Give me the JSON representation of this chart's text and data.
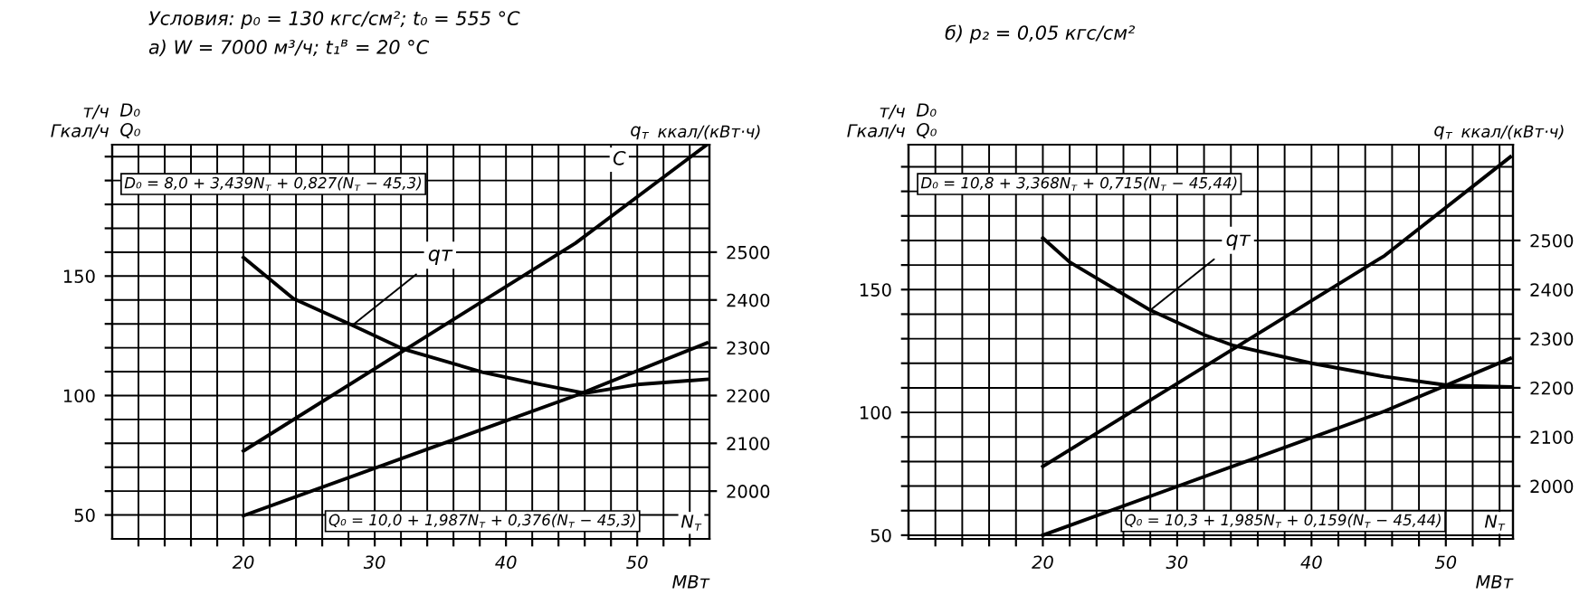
{
  "chart_data": [
    {
      "type": "line",
      "title": "Условия: p₀ = 130 кгс/см²; t₀ = 555 °C",
      "subtitle": "а) W = 7000 м³/ч; t₁$^{в}$ = 20 °C",
      "xlabel": "МВт",
      "ylabel": "т/ч\nГкал/ч",
      "y2label": "ккал/(кВт·ч)",
      "xlim": [
        10,
        55.5
      ],
      "xticks": [
        {
          "value": 12,
          "label": null
        },
        {
          "value": 14,
          "label": null
        },
        {
          "value": 16,
          "label": null
        },
        {
          "value": 18,
          "label": null
        },
        20,
        {
          "value": 22,
          "label": null
        },
        {
          "value": 24,
          "label": null
        },
        {
          "value": 26,
          "label": null
        },
        {
          "value": 28,
          "label": null
        },
        30,
        {
          "value": 32,
          "label": null
        },
        {
          "value": 34,
          "label": null
        },
        {
          "value": 36,
          "label": null
        },
        {
          "value": 38,
          "label": null
        },
        40,
        {
          "value": 42,
          "label": null
        },
        {
          "value": 44,
          "label": null
        },
        {
          "value": 46,
          "label": null
        },
        {
          "value": 48,
          "label": null
        },
        50,
        {
          "value": 52,
          "label": null
        },
        {
          "value": 54,
          "label": null
        }
      ],
      "ylim": [
        40,
        205
      ],
      "yticks": [
        50,
        {
          "value": 60,
          "label": null
        },
        {
          "value": 70,
          "label": null
        },
        {
          "value": 80,
          "label": null
        },
        {
          "value": 90,
          "label": null
        },
        100,
        {
          "value": 110,
          "label": null
        },
        {
          "value": 120,
          "label": null
        },
        {
          "value": 130,
          "label": null
        },
        {
          "value": 140,
          "label": null
        },
        150,
        {
          "value": 160,
          "label": null
        },
        {
          "value": 170,
          "label": null
        },
        {
          "value": 180,
          "label": null
        },
        {
          "value": 190,
          "label": null
        },
        {
          "value": 200,
          "label": null
        }
      ],
      "y2lim": [
        1900,
        2725
      ],
      "y2ticks": [
        2000,
        2100,
        2200,
        2300,
        2400,
        2500
      ],
      "grid": true,
      "series": [
        {
          "color": "#000000",
          "x": [
            20,
            45.3,
            55.3
          ],
          "values": [
            76.8,
            163.8,
            205
          ]
        },
        {
          "color": "#000000",
          "x": [
            20,
            45.3,
            55.3
          ],
          "values": [
            49.7,
            100,
            122
          ]
        },
        {
          "name": "qт",
          "axis": "y2",
          "color": "#000000",
          "x": [
            20,
            23.8,
            28.3,
            32.2,
            38.2,
            41.9,
            46,
            50,
            55.3
          ],
          "values": [
            2489,
            2403,
            2347,
            2297,
            2249,
            2227,
            2205,
            2223,
            2234
          ]
        }
      ],
      "annotations": [
        "D₀\nQ₀",
        "q$_{т}$",
        "N$_{т}$",
        "С",
        "D₀ = 8,0 + 3,439N$_{т}$ + 0,827(N$_{т}$ − 45,3)",
        "Q₀ = 10,0 + 1,987N$_{т}$ + 0,376(N$_{т}$ − 45,3)"
      ]
    },
    {
      "type": "line",
      "title": "б) p₂ = 0,05 кгс/см²",
      "xlabel": "МВт",
      "ylabel": "т/ч\nГкал/ч",
      "y2label": "ккал/(кВт·ч)",
      "xlim": [
        10,
        55
      ],
      "xticks": [
        {
          "value": 12,
          "label": null
        },
        {
          "value": 14,
          "label": null
        },
        {
          "value": 16,
          "label": null
        },
        {
          "value": 18,
          "label": null
        },
        20,
        {
          "value": 22,
          "label": null
        },
        {
          "value": 24,
          "label": null
        },
        {
          "value": 26,
          "label": null
        },
        {
          "value": 28,
          "label": null
        },
        30,
        {
          "value": 32,
          "label": null
        },
        {
          "value": 34,
          "label": null
        },
        {
          "value": 36,
          "label": null
        },
        {
          "value": 38,
          "label": null
        },
        40,
        {
          "value": 42,
          "label": null
        },
        {
          "value": 44,
          "label": null
        },
        {
          "value": 46,
          "label": null
        },
        {
          "value": 48,
          "label": null
        },
        50,
        {
          "value": 52,
          "label": null
        },
        {
          "value": 54,
          "label": null
        }
      ],
      "ylim": [
        48.5,
        209
      ],
      "yticks": [
        50,
        {
          "value": 60,
          "label": null
        },
        {
          "value": 70,
          "label": null
        },
        {
          "value": 80,
          "label": null
        },
        {
          "value": 90,
          "label": null
        },
        100,
        {
          "value": 110,
          "label": null
        },
        {
          "value": 120,
          "label": null
        },
        {
          "value": 130,
          "label": null
        },
        {
          "value": 140,
          "label": null
        },
        150,
        {
          "value": 160,
          "label": null
        },
        {
          "value": 170,
          "label": null
        },
        {
          "value": 180,
          "label": null
        },
        {
          "value": 190,
          "label": null
        },
        {
          "value": 200,
          "label": null
        }
      ],
      "y2lim": [
        1892.5,
        2695
      ],
      "y2ticks": [
        2000,
        2100,
        2200,
        2300,
        2400,
        2500
      ],
      "grid": true,
      "series": [
        {
          "color": "#000000",
          "x": [
            20,
            45.44,
            54.8
          ],
          "values": [
            78,
            163.8,
            204
          ]
        },
        {
          "color": "#000000",
          "x": [
            20,
            45.44,
            54.8
          ],
          "values": [
            50,
            100.5,
            122
          ]
        },
        {
          "name": "qт",
          "axis": "y2",
          "color": "#000000",
          "x": [
            20,
            22,
            28,
            32,
            34.2,
            40,
            45.4,
            50.2,
            54.9
          ],
          "values": [
            2505,
            2456,
            2358,
            2308,
            2286,
            2250,
            2223,
            2205,
            2202
          ]
        }
      ],
      "annotations": [
        "D₀\nQ₀",
        "q$_{т}$",
        "N$_{т}$",
        "D₀ = 10,8 + 3,368N$_{т}$ + 0,715(N$_{т}$ − 45,44)",
        "Q₀ = 10,3 + 1,985N$_{т}$ + 0,159(N$_{т}$ − 45,44)"
      ]
    }
  ]
}
